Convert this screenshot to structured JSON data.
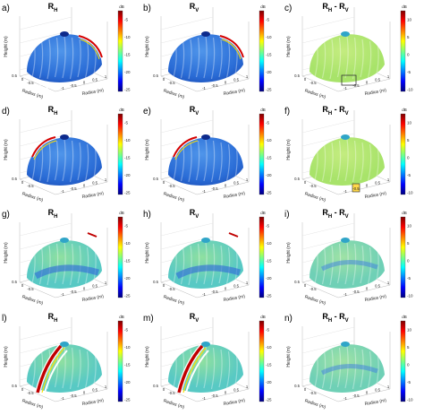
{
  "rows": [
    {
      "panels": [
        {
          "label": "a)",
          "title_main": "R",
          "title_sub": "H",
          "title_rest": "",
          "kind": "abs",
          "stripe": "right",
          "box": "left"
        },
        {
          "label": "b)",
          "title_main": "R",
          "title_sub": "V",
          "title_rest": "",
          "kind": "abs",
          "stripe": "right",
          "box": "none"
        },
        {
          "label": "c)",
          "title_main": "R",
          "title_sub": "H",
          "title_rest": " - R",
          "title_sub2": "V",
          "kind": "diff",
          "stripe": "none",
          "box": "center"
        }
      ]
    },
    {
      "panels": [
        {
          "label": "d)",
          "title_main": "R",
          "title_sub": "H",
          "title_rest": "",
          "kind": "abs",
          "stripe": "left",
          "box": "none"
        },
        {
          "label": "e)",
          "title_main": "R",
          "title_sub": "V",
          "title_rest": "",
          "kind": "abs",
          "stripe": "left",
          "box": "none"
        },
        {
          "label": "f)",
          "title_main": "R",
          "title_sub": "H",
          "title_rest": " - R",
          "title_sub2": "V",
          "kind": "diff",
          "stripe": "none",
          "box": "small"
        }
      ]
    },
    {
      "panels": [
        {
          "label": "g)",
          "title_main": "R",
          "title_sub": "H",
          "title_rest": "",
          "kind": "abs2",
          "stripe": "none",
          "box": "none"
        },
        {
          "label": "h)",
          "title_main": "R",
          "title_sub": "V",
          "title_rest": "",
          "kind": "abs2",
          "stripe": "none",
          "box": "none"
        },
        {
          "label": "i)",
          "title_main": "R",
          "title_sub": "H",
          "title_rest": " - R",
          "title_sub2": "V",
          "kind": "diff2",
          "stripe": "none",
          "box": "none"
        }
      ]
    },
    {
      "panels": [
        {
          "label": "l)",
          "title_main": "R",
          "title_sub": "H",
          "title_rest": "",
          "kind": "abs2",
          "stripe": "front",
          "box": "none"
        },
        {
          "label": "m)",
          "title_main": "R",
          "title_sub": "V",
          "title_rest": "",
          "kind": "abs2",
          "stripe": "front",
          "box": "none"
        },
        {
          "label": "n)",
          "title_main": "R",
          "title_sub": "H",
          "title_rest": " - R",
          "title_sub2": "V",
          "kind": "diff2",
          "stripe": "none",
          "box": "none"
        }
      ]
    }
  ],
  "axes": {
    "zlabel": "Height (m)",
    "xlabel": "Radius (m)",
    "ylabel": "Radius (m)",
    "ticks_left": [
      "0.5",
      "0",
      "-0.5"
    ],
    "ticks_right": [
      "-1",
      "-0.5",
      "0",
      "0.5",
      "1"
    ]
  },
  "colorbar_abs": {
    "unit": "dB",
    "ticks": [
      "-5",
      "-10",
      "-15",
      "-20",
      "-25"
    ]
  },
  "colorbar_diff": {
    "unit": "dB",
    "ticks": [
      "10",
      "5",
      "0",
      "-5",
      "-10"
    ]
  },
  "colors": {
    "jet": [
      "#00007f",
      "#0000ff",
      "#007fff",
      "#00ffff",
      "#7fff7f",
      "#ffff00",
      "#ff7f00",
      "#ff0000",
      "#7f0000"
    ],
    "dome_abs": "#2a6cd6",
    "dome_abs_light": "#4f95ea",
    "dome_abs2": "#58c9c4",
    "dome_diff": "#a8e36a",
    "dome_diff2": "#6fd0b6"
  }
}
